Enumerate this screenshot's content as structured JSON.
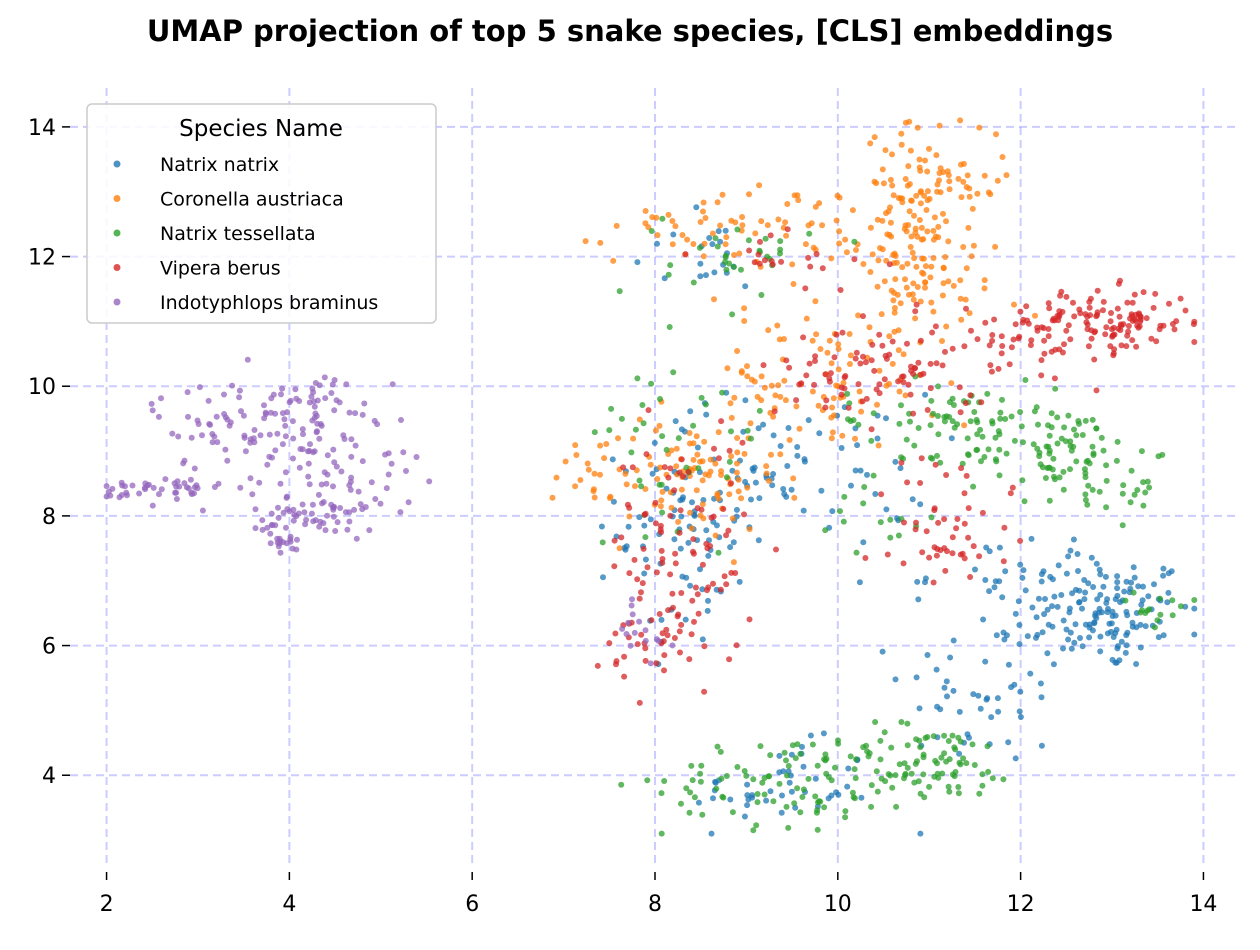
{
  "chart_data": {
    "type": "scatter",
    "title": "UMAP projection of top 5 snake species, [CLS] embeddings",
    "xlabel": "",
    "ylabel": "",
    "xlim": [
      1.6,
      14.4
    ],
    "ylim": [
      2.6,
      14.6
    ],
    "xticks": [
      2,
      4,
      6,
      8,
      10,
      12,
      14
    ],
    "yticks": [
      4,
      6,
      8,
      10,
      12,
      14
    ],
    "grid": true,
    "grid_color": "#8080ff",
    "legend": {
      "title": "Species Name",
      "placement": "top-left"
    },
    "series": [
      {
        "name": "Natrix natrix",
        "color": "#1f77b4",
        "clusters": [
          {
            "cx": 12.9,
            "cy": 6.5,
            "sx": 0.5,
            "sy": 0.45,
            "n": 140
          },
          {
            "cx": 11.6,
            "cy": 5.3,
            "sx": 0.45,
            "sy": 0.6,
            "n": 50
          },
          {
            "cx": 9.4,
            "cy": 3.8,
            "sx": 0.5,
            "sy": 0.35,
            "n": 45
          },
          {
            "cx": 8.3,
            "cy": 7.8,
            "sx": 0.35,
            "sy": 0.9,
            "n": 80
          },
          {
            "cx": 9.6,
            "cy": 8.7,
            "sx": 0.7,
            "sy": 0.6,
            "n": 70
          },
          {
            "cx": 8.5,
            "cy": 12.0,
            "sx": 0.4,
            "sy": 0.3,
            "n": 20
          },
          {
            "cx": 12.0,
            "cy": 7.1,
            "sx": 0.5,
            "sy": 0.3,
            "n": 30
          }
        ]
      },
      {
        "name": "Coronella austriaca",
        "color": "#ff7f0e",
        "clusters": [
          {
            "cx": 10.9,
            "cy": 12.6,
            "sx": 0.3,
            "sy": 0.7,
            "n": 130
          },
          {
            "cx": 9.0,
            "cy": 12.5,
            "sx": 0.7,
            "sy": 0.3,
            "n": 70
          },
          {
            "cx": 10.7,
            "cy": 11.2,
            "sx": 0.5,
            "sy": 0.6,
            "n": 60
          },
          {
            "cx": 9.7,
            "cy": 10.0,
            "sx": 0.7,
            "sy": 0.5,
            "n": 80
          },
          {
            "cx": 8.4,
            "cy": 8.6,
            "sx": 0.5,
            "sy": 0.5,
            "n": 90
          },
          {
            "cx": 7.4,
            "cy": 8.6,
            "sx": 0.25,
            "sy": 0.3,
            "n": 20
          },
          {
            "cx": 11.4,
            "cy": 13.2,
            "sx": 0.2,
            "sy": 0.2,
            "n": 15
          }
        ]
      },
      {
        "name": "Natrix tessellata",
        "color": "#2ca02c",
        "clusters": [
          {
            "cx": 12.4,
            "cy": 9.0,
            "sx": 0.5,
            "sy": 0.35,
            "n": 90
          },
          {
            "cx": 13.0,
            "cy": 8.4,
            "sx": 0.3,
            "sy": 0.3,
            "n": 20
          },
          {
            "cx": 11.0,
            "cy": 4.2,
            "sx": 0.5,
            "sy": 0.3,
            "n": 80
          },
          {
            "cx": 9.5,
            "cy": 3.9,
            "sx": 0.7,
            "sy": 0.35,
            "n": 90
          },
          {
            "cx": 11.2,
            "cy": 9.5,
            "sx": 0.6,
            "sy": 0.3,
            "n": 60
          },
          {
            "cx": 8.9,
            "cy": 12.1,
            "sx": 0.4,
            "sy": 0.3,
            "n": 30
          },
          {
            "cx": 8.3,
            "cy": 9.3,
            "sx": 0.5,
            "sy": 0.7,
            "n": 40
          },
          {
            "cx": 13.5,
            "cy": 6.5,
            "sx": 0.25,
            "sy": 0.15,
            "n": 15
          },
          {
            "cx": 10.3,
            "cy": 7.9,
            "sx": 0.4,
            "sy": 0.3,
            "n": 15
          }
        ]
      },
      {
        "name": "Vipera berus",
        "color": "#d62728",
        "clusters": [
          {
            "cx": 13.0,
            "cy": 11.0,
            "sx": 0.45,
            "sy": 0.25,
            "n": 110
          },
          {
            "cx": 12.0,
            "cy": 10.8,
            "sx": 0.4,
            "sy": 0.3,
            "n": 40
          },
          {
            "cx": 10.5,
            "cy": 10.2,
            "sx": 0.6,
            "sy": 0.4,
            "n": 90
          },
          {
            "cx": 8.3,
            "cy": 7.5,
            "sx": 0.4,
            "sy": 0.9,
            "n": 90
          },
          {
            "cx": 7.9,
            "cy": 6.2,
            "sx": 0.3,
            "sy": 0.3,
            "n": 30
          },
          {
            "cx": 11.2,
            "cy": 7.4,
            "sx": 0.3,
            "sy": 0.2,
            "n": 25
          },
          {
            "cx": 9.3,
            "cy": 12.1,
            "sx": 0.5,
            "sy": 0.25,
            "n": 20
          },
          {
            "cx": 11.3,
            "cy": 8.2,
            "sx": 0.4,
            "sy": 0.4,
            "n": 25
          }
        ]
      },
      {
        "name": "Indotyphlops braminus",
        "color": "#9467bd",
        "clusters": [
          {
            "cx": 3.5,
            "cy": 9.4,
            "sx": 0.5,
            "sy": 0.35,
            "n": 80
          },
          {
            "cx": 2.6,
            "cy": 8.4,
            "sx": 0.35,
            "sy": 0.12,
            "n": 45
          },
          {
            "cx": 4.3,
            "cy": 8.0,
            "sx": 0.35,
            "sy": 0.18,
            "n": 60
          },
          {
            "cx": 4.6,
            "cy": 8.8,
            "sx": 0.4,
            "sy": 0.35,
            "n": 50
          },
          {
            "cx": 4.4,
            "cy": 9.8,
            "sx": 0.3,
            "sy": 0.2,
            "n": 35
          },
          {
            "cx": 3.9,
            "cy": 7.6,
            "sx": 0.15,
            "sy": 0.1,
            "n": 15
          },
          {
            "cx": 7.8,
            "cy": 6.2,
            "sx": 0.2,
            "sy": 0.3,
            "n": 15
          }
        ]
      }
    ]
  }
}
